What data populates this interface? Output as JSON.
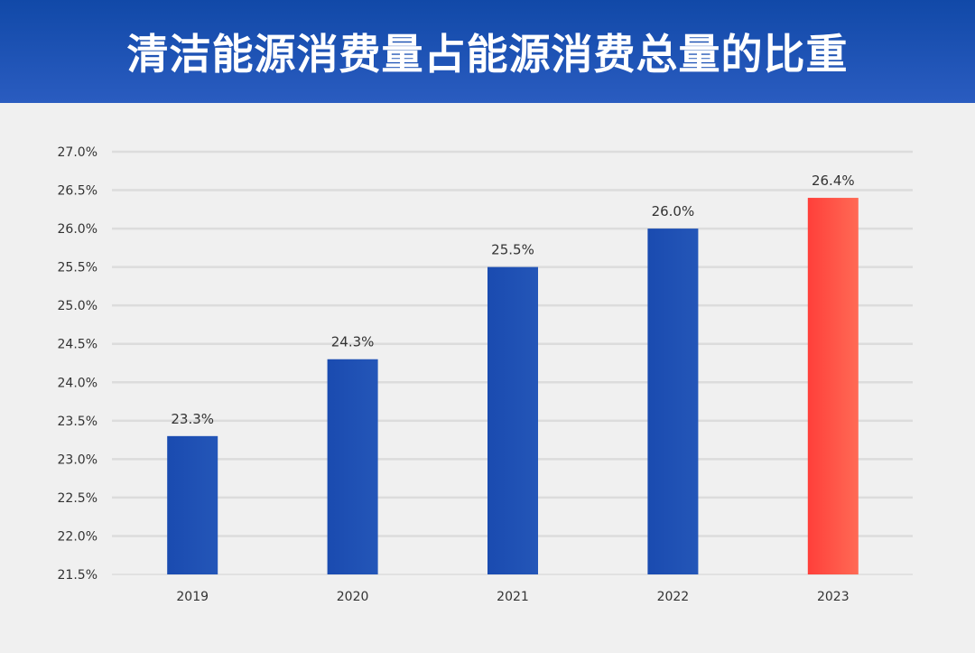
{
  "header": {
    "title": "清洁能源消费量占能源消费总量的比重"
  },
  "chart_data": {
    "type": "bar",
    "title": "清洁能源消费量占能源消费总量的比重",
    "categories": [
      "2019",
      "2020",
      "2021",
      "2022",
      "2023"
    ],
    "values": [
      23.3,
      24.3,
      25.5,
      26.0,
      26.4
    ],
    "value_labels": [
      "23.3%",
      "24.3%",
      "25.5%",
      "26.0%",
      "26.4%"
    ],
    "ylim": [
      21.5,
      27.0
    ],
    "yticks": [
      21.5,
      22.0,
      22.5,
      23.0,
      23.5,
      24.0,
      24.5,
      25.0,
      25.5,
      26.0,
      26.5,
      27.0
    ],
    "ytick_labels": [
      "21.5%",
      "22.0%",
      "22.5%",
      "23.0%",
      "23.5%",
      "24.0%",
      "24.5%",
      "25.0%",
      "25.5%",
      "26.0%",
      "26.5%",
      "27.0%"
    ],
    "grid": true,
    "legend": "none",
    "colors": {
      "bar": "#1f52b4",
      "highlight_bar": "#ff4a40",
      "highlight_category": "2023",
      "grid": "#dcdcdc",
      "tick_text": "#333333",
      "label_text": "#333333"
    }
  }
}
